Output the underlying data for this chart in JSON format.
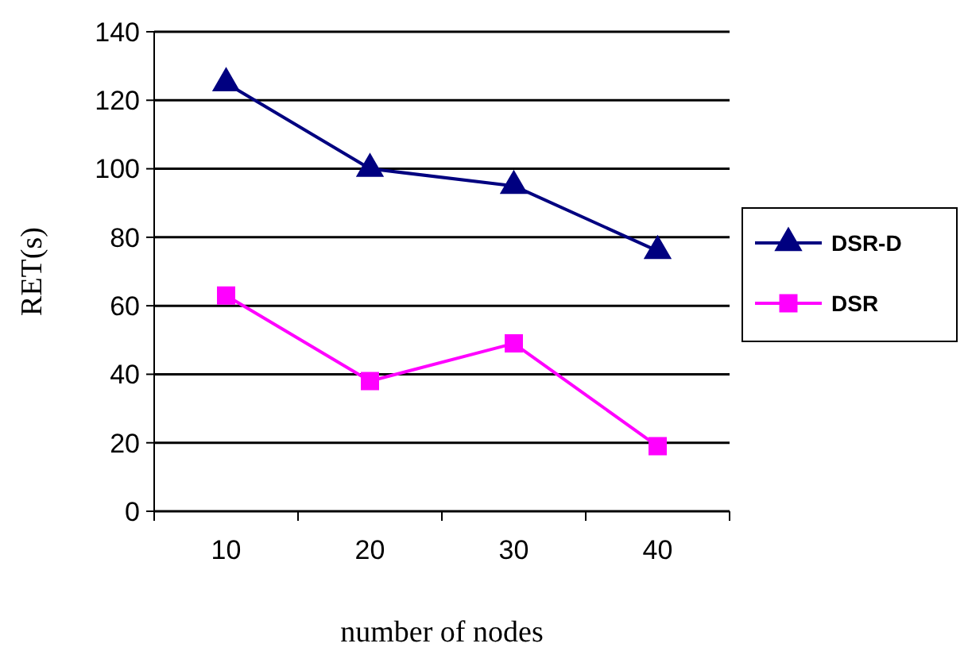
{
  "chart_data": {
    "type": "line",
    "xlabel": "number of nodes",
    "ylabel": "RET(s)",
    "categories": [
      "10",
      "20",
      "30",
      "40"
    ],
    "series": [
      {
        "name": "DSR-D",
        "color": "#000080",
        "values": [
          125,
          100,
          95,
          76
        ],
        "marker": "triangle"
      },
      {
        "name": "DSR",
        "color": "#ff00ff",
        "values": [
          63,
          38,
          49,
          19
        ],
        "marker": "square"
      }
    ],
    "ylim": [
      0,
      140
    ],
    "yticks": [
      0,
      20,
      40,
      60,
      80,
      100,
      120,
      140
    ],
    "grid": "y",
    "legend": "right"
  }
}
